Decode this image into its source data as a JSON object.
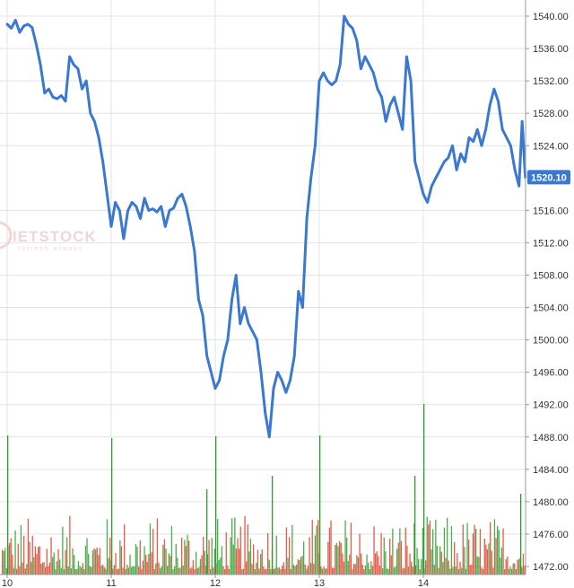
{
  "chart_data": {
    "type": "line",
    "watermark": {
      "text": "IETSTOCK",
      "subtext": "refresh always"
    },
    "x_ticks": [
      "10",
      "11",
      "12",
      "13",
      "14"
    ],
    "y_ticks": [
      "1540.00",
      "1536.00",
      "1532.00",
      "1528.00",
      "1524.00",
      "1516.00",
      "1512.00",
      "1508.00",
      "1504.00",
      "1500.00",
      "1496.00",
      "1492.00",
      "1488.00",
      "1484.00",
      "1480.00",
      "1476.00",
      "1472.00"
    ],
    "ylim": [
      1471,
      1542
    ],
    "xlim": [
      10,
      15.05
    ],
    "last_value": 1520.1,
    "last_value_label": "1520.10",
    "colors": {
      "line": "#3a78d1",
      "grid": "#e3e3e3",
      "up_volume": "#2e9e2e",
      "down_volume": "#e0402a",
      "label_bg": "#3a78d1"
    },
    "series": [
      {
        "x": [
          10.0,
          10.04,
          10.08,
          10.12,
          10.16,
          10.2,
          10.24,
          10.28,
          10.32,
          10.36,
          10.4,
          10.44,
          10.48,
          10.52,
          10.56,
          10.6,
          10.64,
          10.68,
          10.72,
          10.76,
          10.8,
          10.84,
          10.88,
          10.92,
          10.96,
          11.0,
          11.04,
          11.08,
          11.12,
          11.16,
          11.2,
          11.24,
          11.28,
          11.32,
          11.36,
          11.4,
          11.44,
          11.48,
          11.52,
          11.56,
          11.6,
          11.64,
          11.68,
          11.72,
          11.76,
          11.8,
          11.84,
          11.88,
          11.92,
          11.96,
          12.0,
          12.04,
          12.08,
          12.12,
          12.16,
          12.2,
          12.24,
          12.28,
          12.32,
          12.36,
          12.4,
          12.44,
          12.48,
          12.52,
          12.56,
          12.6,
          12.64,
          12.68,
          12.72,
          12.76,
          12.8,
          12.84,
          12.88,
          12.92,
          12.96,
          13.0,
          13.04,
          13.08,
          13.12,
          13.16,
          13.2,
          13.24,
          13.28,
          13.32,
          13.36,
          13.4,
          13.44,
          13.48,
          13.52,
          13.56,
          13.6,
          13.64,
          13.68,
          13.72,
          13.76,
          13.8,
          13.84,
          13.88,
          13.92,
          13.96,
          14.0,
          14.04,
          14.08,
          14.12,
          14.16,
          14.2,
          14.24,
          14.28,
          14.32,
          14.36,
          14.4,
          14.44,
          14.48,
          14.52,
          14.56,
          14.6,
          14.64,
          14.68,
          14.72,
          14.76,
          14.8,
          14.84,
          14.88,
          14.92,
          14.95,
          14.98
        ],
        "values": [
          1539,
          1538.5,
          1539.5,
          1538,
          1538.8,
          1539,
          1538.6,
          1536.5,
          1534,
          1530.5,
          1531,
          1530,
          1529.8,
          1530.2,
          1529.5,
          1535,
          1534,
          1533.5,
          1531,
          1532,
          1528,
          1527,
          1525,
          1522,
          1518,
          1514,
          1517,
          1516,
          1512.5,
          1516,
          1517,
          1516.5,
          1515,
          1517.5,
          1516,
          1516.2,
          1515.8,
          1516.5,
          1514,
          1516,
          1516.3,
          1517.5,
          1518,
          1516.5,
          1514,
          1511,
          1505,
          1503,
          1498,
          1496,
          1494,
          1495,
          1498,
          1500,
          1505,
          1508,
          1502,
          1504,
          1502,
          1501,
          1500,
          1496,
          1491,
          1488,
          1494,
          1496,
          1495,
          1493.5,
          1495,
          1498,
          1506,
          1504,
          1515,
          1520,
          1524,
          1532,
          1533,
          1532,
          1531.5,
          1532,
          1534,
          1540,
          1539,
          1538.5,
          1537,
          1533.5,
          1535,
          1534,
          1533,
          1531,
          1530,
          1527,
          1529,
          1530,
          1528,
          1526,
          1535,
          1532,
          1522,
          1520,
          1518,
          1517,
          1519,
          1520,
          1521,
          1522,
          1522.5,
          1524,
          1521,
          1523,
          1522,
          1525,
          1524.5,
          1526,
          1524,
          1526,
          1529,
          1531,
          1529.5,
          1526,
          1525,
          1524,
          1521,
          1519,
          1527,
          1520.1
        ]
      }
    ]
  }
}
